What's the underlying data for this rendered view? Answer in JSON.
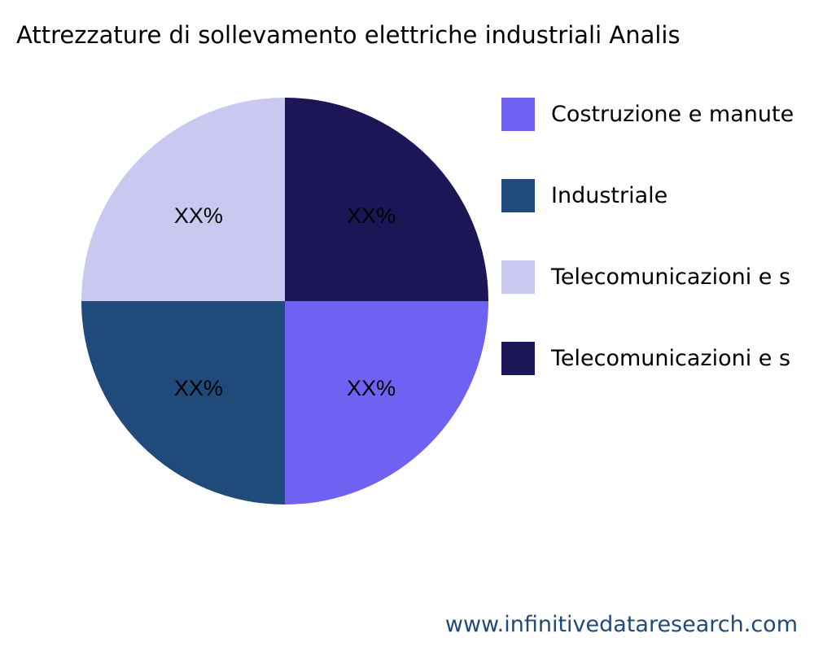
{
  "chart_data": {
    "type": "pie",
    "title": "Attrezzature di sollevamento elettriche industriali Analis",
    "slices": [
      {
        "label": "Costruzione e manute",
        "value": 25,
        "display": "XX%",
        "color": "#6f61f2"
      },
      {
        "label": "Industriale",
        "value": 25,
        "display": "XX%",
        "color": "#1f4a7a"
      },
      {
        "label": "Telecomunicazioni e s",
        "value": 25,
        "display": "XX%",
        "color": "#c8c8f0"
      },
      {
        "label": "Telecomunicazioni e s",
        "value": 25,
        "display": "XX%",
        "color": "#1c1657"
      }
    ],
    "legend_placement": "right"
  },
  "watermark": "www.infinitivedataresearch.com"
}
